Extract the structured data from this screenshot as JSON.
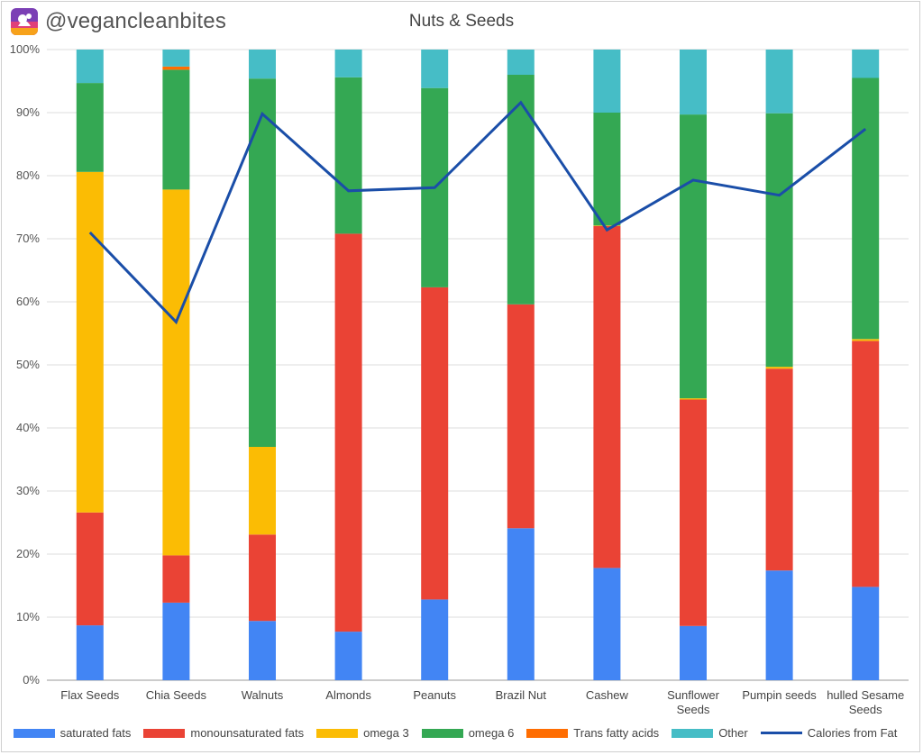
{
  "header": {
    "handle": "@vegancleanbites",
    "logo_icon": "vegancleanbites-logo-icon"
  },
  "chart_data": {
    "type": "bar",
    "stacked": true,
    "title": "Nuts & Seeds",
    "xlabel": "",
    "ylabel": "",
    "ylim": [
      0,
      100
    ],
    "yticks": [
      "0%",
      "10%",
      "20%",
      "30%",
      "40%",
      "50%",
      "60%",
      "70%",
      "80%",
      "90%",
      "100%"
    ],
    "grid": true,
    "legend_position": "bottom",
    "categories": [
      "Flax Seeds",
      "Chia Seeds",
      "Walnuts",
      "Almonds",
      "Peanuts",
      "Brazil Nut",
      "Cashew",
      "Sunflower Seeds",
      "Pumpin seeds",
      "hulled Sesame Seeds"
    ],
    "series": [
      {
        "name": "saturated fats",
        "color": "#4285f4",
        "values": [
          8.7,
          12.3,
          9.4,
          7.7,
          12.8,
          24.1,
          17.8,
          8.6,
          17.4,
          14.8
        ]
      },
      {
        "name": "monounsaturated fats",
        "color": "#ea4335",
        "values": [
          17.9,
          7.5,
          13.7,
          63.1,
          49.5,
          35.5,
          54.2,
          35.9,
          32.0,
          39.0
        ]
      },
      {
        "name": "omega 3",
        "color": "#fbbc04",
        "values": [
          54.0,
          58.0,
          13.9,
          0.0,
          0.0,
          0.0,
          0.1,
          0.2,
          0.3,
          0.3
        ]
      },
      {
        "name": "omega 6",
        "color": "#34a853",
        "values": [
          14.1,
          19.0,
          58.4,
          24.8,
          31.6,
          36.4,
          17.9,
          45.0,
          40.2,
          41.4
        ]
      },
      {
        "name": "Trans fatty acids",
        "color": "#ff6d01",
        "values": [
          0.0,
          0.5,
          0.0,
          0.0,
          0.0,
          0.0,
          0.0,
          0.0,
          0.0,
          0.0
        ]
      },
      {
        "name": "Other",
        "color": "#46bdc6",
        "values": [
          5.3,
          2.7,
          4.6,
          4.4,
          6.1,
          4.0,
          10.0,
          10.3,
          10.1,
          4.5
        ]
      }
    ],
    "line_series": {
      "name": "Calories from Fat",
      "color": "#1a4ea8",
      "values": [
        71.0,
        56.8,
        89.8,
        77.6,
        78.1,
        91.6,
        71.4,
        79.3,
        76.9,
        87.4
      ]
    }
  }
}
